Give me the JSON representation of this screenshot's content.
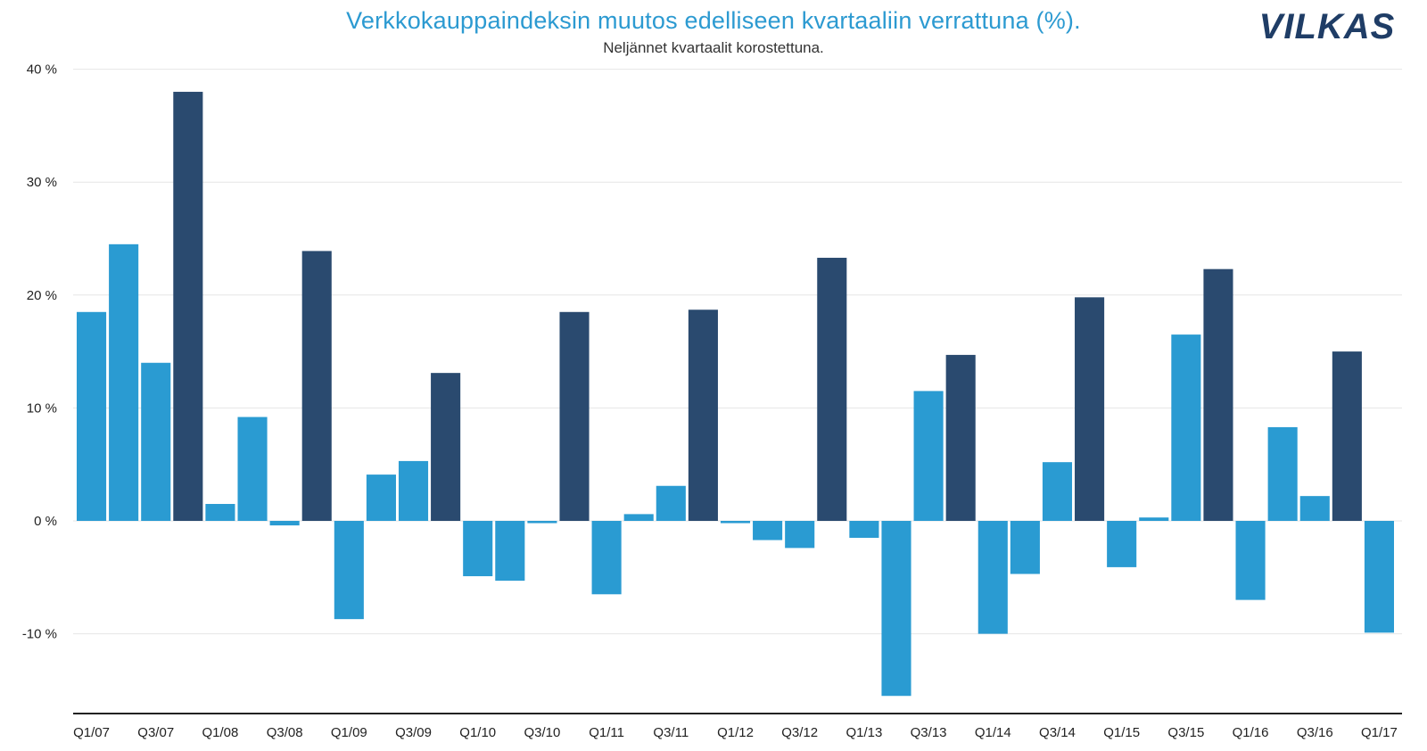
{
  "chart_data": {
    "type": "bar",
    "title": "Verkkokauppaindeksin muutos edelliseen kvartaaliin verrattuna (%).",
    "subtitle": "Neljännet kvartaalit korostettuna.",
    "xlabel": "",
    "ylabel": "",
    "ylim": [
      -17,
      42
    ],
    "yticks": [
      -10,
      0,
      10,
      20,
      30,
      40
    ],
    "ytick_labels": [
      "-10 %",
      "0 %",
      "10 %",
      "20 %",
      "30 %",
      "40 %"
    ],
    "grid": true,
    "categories": [
      "Q1/07",
      "Q2/07",
      "Q3/07",
      "Q4/07",
      "Q1/08",
      "Q2/08",
      "Q3/08",
      "Q4/08",
      "Q1/09",
      "Q2/09",
      "Q3/09",
      "Q4/09",
      "Q1/10",
      "Q2/10",
      "Q3/10",
      "Q4/10",
      "Q1/11",
      "Q2/11",
      "Q3/11",
      "Q4/11",
      "Q1/12",
      "Q2/12",
      "Q3/12",
      "Q4/12",
      "Q1/13",
      "Q2/13",
      "Q3/13",
      "Q4/13",
      "Q1/14",
      "Q2/14",
      "Q3/14",
      "Q4/14",
      "Q1/15",
      "Q2/15",
      "Q3/15",
      "Q4/15",
      "Q1/16",
      "Q2/16",
      "Q3/16",
      "Q4/16",
      "Q1/17"
    ],
    "x_tick_labels_shown": [
      "Q1/07",
      "Q3/07",
      "Q1/08",
      "Q3/08",
      "Q1/09",
      "Q3/09",
      "Q1/10",
      "Q3/10",
      "Q1/11",
      "Q3/11",
      "Q1/12",
      "Q3/12",
      "Q1/13",
      "Q3/13",
      "Q1/14",
      "Q3/14",
      "Q1/15",
      "Q3/15",
      "Q1/16",
      "Q3/16",
      "Q1/17"
    ],
    "values": [
      18.5,
      24.5,
      14.0,
      38.0,
      1.5,
      9.2,
      -0.4,
      23.9,
      -8.7,
      4.1,
      5.3,
      13.1,
      -4.9,
      -5.3,
      -0.2,
      18.5,
      -6.5,
      0.6,
      3.1,
      18.7,
      -0.2,
      -1.7,
      -2.4,
      23.3,
      -1.5,
      -15.5,
      11.5,
      14.7,
      -10.0,
      -4.7,
      5.2,
      19.8,
      -4.1,
      0.3,
      16.5,
      22.3,
      -7.0,
      8.3,
      2.2,
      15.0,
      -9.9
    ],
    "highlight_every_fourth": "Q4",
    "colors": {
      "regular": "#2a9bd2",
      "highlight": "#2a4a6f",
      "grid": "#e6e6e6",
      "axis": "#222222",
      "title": "#2c9ad1"
    }
  },
  "logo": {
    "text": "VILKAS"
  }
}
